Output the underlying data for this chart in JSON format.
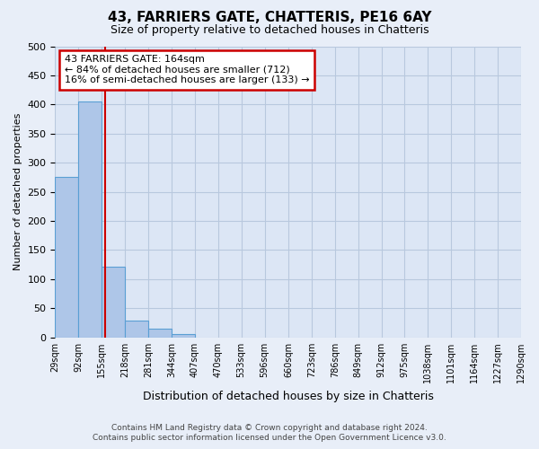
{
  "title": "43, FARRIERS GATE, CHATTERIS, PE16 6AY",
  "subtitle": "Size of property relative to detached houses in Chatteris",
  "xlabel": "Distribution of detached houses by size in Chatteris",
  "ylabel": "Number of detached properties",
  "bin_labels": [
    "29sqm",
    "92sqm",
    "155sqm",
    "218sqm",
    "281sqm",
    "344sqm",
    "407sqm",
    "470sqm",
    "533sqm",
    "596sqm",
    "660sqm",
    "723sqm",
    "786sqm",
    "849sqm",
    "912sqm",
    "975sqm",
    "1038sqm",
    "1101sqm",
    "1164sqm",
    "1227sqm",
    "1290sqm"
  ],
  "bin_edges": [
    29,
    92,
    155,
    218,
    281,
    344,
    407,
    470,
    533,
    596,
    660,
    723,
    786,
    849,
    912,
    975,
    1038,
    1101,
    1164,
    1227,
    1290
  ],
  "bar_heights": [
    275,
    405,
    122,
    29,
    15,
    5,
    0,
    0,
    0,
    0,
    0,
    0,
    0,
    0,
    0,
    0,
    0,
    0,
    0,
    0
  ],
  "bar_color": "#aec6e8",
  "bar_edge_color": "#5a9fd4",
  "marker_value": 164,
  "marker_color": "#cc0000",
  "ylim": [
    0,
    500
  ],
  "yticks": [
    0,
    50,
    100,
    150,
    200,
    250,
    300,
    350,
    400,
    450,
    500
  ],
  "annotation_line1": "43 FARRIERS GATE: 164sqm",
  "annotation_line2": "← 84% of detached houses are smaller (712)",
  "annotation_line3": "16% of semi-detached houses are larger (133) →",
  "footnote1": "Contains HM Land Registry data © Crown copyright and database right 2024.",
  "footnote2": "Contains public sector information licensed under the Open Government Licence v3.0.",
  "background_color": "#e8eef8",
  "plot_bg_color": "#dce6f5",
  "grid_color": "#b8c8de",
  "annotation_box_edge_color": "#cc0000",
  "annotation_box_face_color": "#ffffff"
}
